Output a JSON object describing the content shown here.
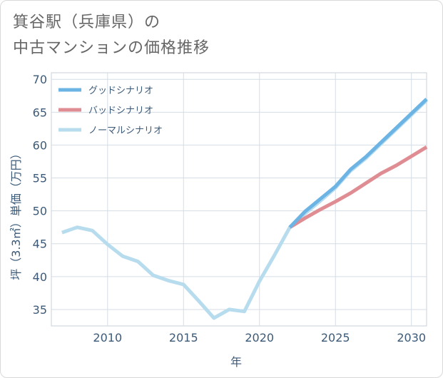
{
  "title": {
    "line1": "箕谷駅（兵庫県）の",
    "line2": "中古マンションの価格推移"
  },
  "chart_data": {
    "type": "line",
    "xlabel": "年",
    "ylabel": "坪（3.3㎡）単価（万円）",
    "xlim": [
      2006.3,
      2031
    ],
    "ylim": [
      32.5,
      71
    ],
    "xticks": [
      2010,
      2015,
      2020,
      2025,
      2030
    ],
    "yticks": [
      35,
      40,
      45,
      50,
      55,
      60,
      65,
      70
    ],
    "grid": true,
    "legend_position": "top-left",
    "series": [
      {
        "name": "グッドシナリオ",
        "color": "#6cb4e4",
        "x": [
          2022,
          2023,
          2024,
          2025,
          2026,
          2027,
          2028,
          2029,
          2030,
          2031
        ],
        "values": [
          47.5,
          49.9,
          51.8,
          53.7,
          56.3,
          58.2,
          60.4,
          62.6,
          64.8,
          67.0
        ]
      },
      {
        "name": "バッドシナリオ",
        "color": "#df8c93",
        "x": [
          2022,
          2023,
          2024,
          2025,
          2026,
          2027,
          2028,
          2029,
          2030,
          2031
        ],
        "values": [
          47.5,
          48.9,
          50.2,
          51.4,
          52.7,
          54.2,
          55.7,
          56.9,
          58.3,
          59.7
        ]
      },
      {
        "name": "ノーマルシナリオ",
        "color": "#b7dcee",
        "x": [
          2007,
          2008,
          2009,
          2010,
          2011,
          2012,
          2013,
          2014,
          2015,
          2016,
          2017,
          2018,
          2019,
          2020,
          2021,
          2022,
          2023,
          2024,
          2025,
          2026,
          2027,
          2028,
          2029,
          2030,
          2031
        ],
        "values": [
          46.7,
          47.5,
          47.0,
          44.9,
          43.1,
          42.3,
          40.2,
          39.4,
          38.8,
          36.3,
          33.7,
          35.0,
          34.7,
          39.3,
          43.3,
          47.5,
          49.6,
          51.5,
          53.5,
          56.1,
          58.0,
          60.2,
          62.4,
          64.6,
          66.8
        ]
      }
    ]
  }
}
